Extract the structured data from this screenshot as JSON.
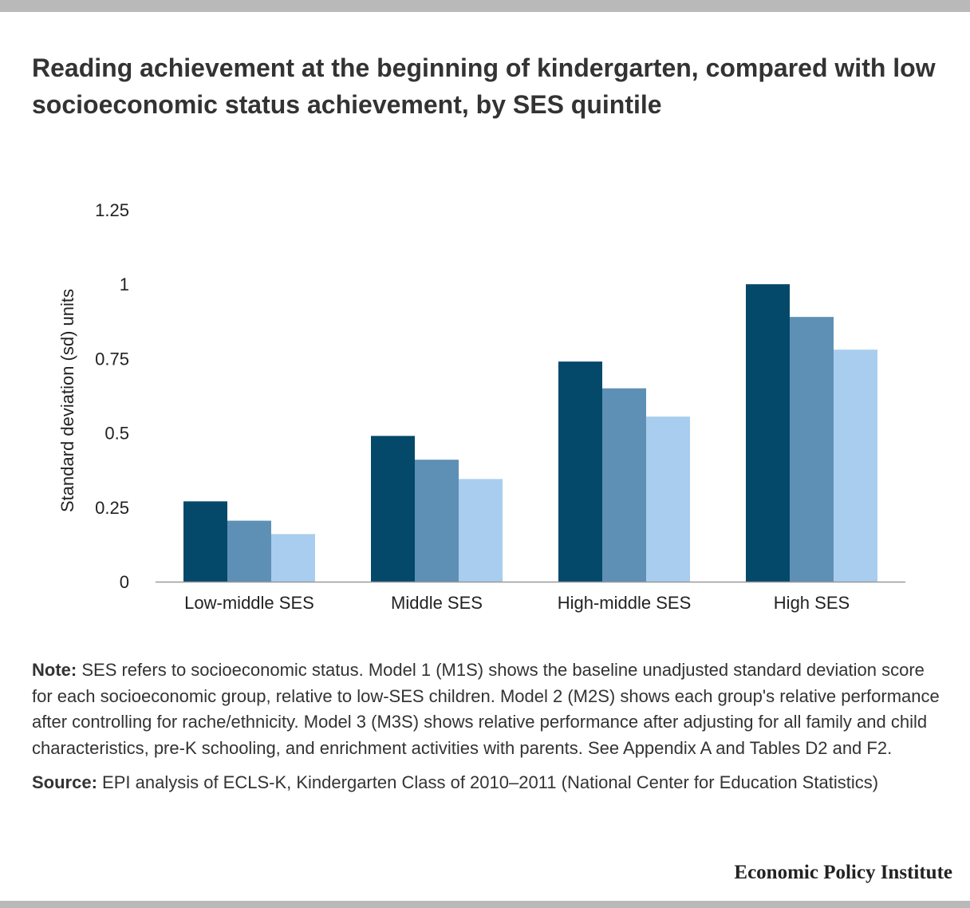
{
  "title": "Reading achievement at the beginning of kindergarten, compared with low socioeconomic status achievement, by SES quintile",
  "note": {
    "label": "Note:",
    "text": "SES refers to socioeconomic status. Model 1 (M1S) shows the baseline unadjusted standard deviation score for each socioeconomic group, relative to low-SES children. Model 2 (M2S) shows each group's relative performance after controlling for rache/ethnicity. Model 3 (M3S) shows relative performance after adjusting for all family and child characteristics, pre-K schooling, and enrichment activities with parents. See Appendix A and Tables D2 and F2."
  },
  "source": {
    "label": "Source:",
    "text": "EPI analysis of ECLS-K, Kindergarten Class of 2010–2011 (National Center for Education Statistics)"
  },
  "brand": "Economic Policy Institute",
  "chart_data": {
    "type": "bar",
    "categories": [
      "Low-middle SES",
      "Middle SES",
      "High-middle SES",
      "High SES"
    ],
    "series": [
      {
        "values": [
          0.27,
          0.49,
          0.74,
          1.0
        ],
        "color": "#05496a"
      },
      {
        "values": [
          0.205,
          0.41,
          0.65,
          0.89
        ],
        "color": "#5e90b5"
      },
      {
        "values": [
          0.16,
          0.345,
          0.555,
          0.78
        ],
        "color": "#a9cdee"
      }
    ],
    "ylabel": "Standard deviation (sd) units",
    "ylim": [
      0,
      1.25
    ],
    "yticks": [
      0,
      0.25,
      0.5,
      0.75,
      1,
      1.25
    ],
    "ytick_labels": [
      "0",
      "0.25",
      "0.5",
      "0.75",
      "1",
      "1.25"
    ],
    "grid": false,
    "legend": "none"
  }
}
